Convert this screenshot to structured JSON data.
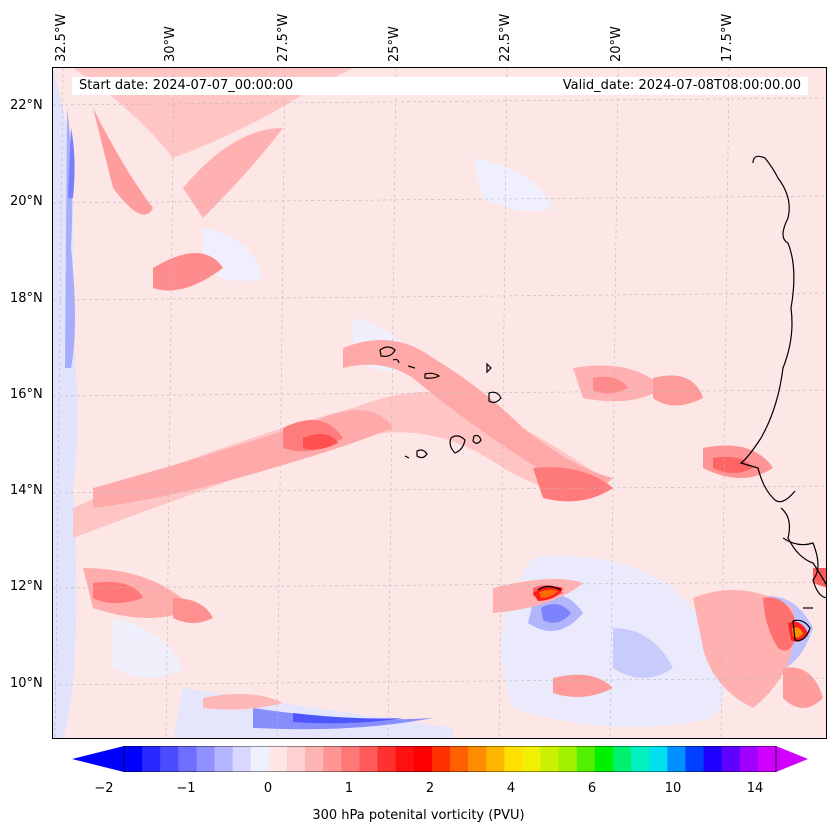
{
  "map": {
    "start_date": "Start date: 2024-07-07_00:00:00",
    "valid_date": "Valid_date: 2024-07-08T08:00:00.00",
    "longitude_labels": [
      "32.5°W",
      "30°W",
      "27.5°W",
      "25°W",
      "22.5°W",
      "20°W",
      "17.5°W"
    ],
    "latitude_labels": [
      "22°N",
      "20°N",
      "18°N",
      "16°N",
      "14°N",
      "12°N",
      "10°N"
    ],
    "field": "300 hPa potential vorticity",
    "projection": "lat-lon, gridlines dashed grey"
  },
  "colorbar": {
    "title": "300 hPa potenital vorticity (PVU)",
    "tick_labels": [
      "−2",
      "−1",
      "0",
      "1",
      "2",
      "4",
      "6",
      "10",
      "14"
    ],
    "colors": [
      "#0000ff",
      "#2828ff",
      "#4a4aff",
      "#6e6eff",
      "#9090ff",
      "#b4b4ff",
      "#d8d8ff",
      "#eef0ff",
      "#ffe6e6",
      "#ffd0d0",
      "#ffb4b4",
      "#ff9696",
      "#ff7878",
      "#ff5a5a",
      "#ff3030",
      "#ff1010",
      "#ff0000",
      "#ff3000",
      "#ff6000",
      "#ff8c00",
      "#ffb400",
      "#ffe000",
      "#f0f000",
      "#c8f000",
      "#a0f000",
      "#50f000",
      "#00f000",
      "#00f070",
      "#00f0c0",
      "#00e0f0",
      "#0090ff",
      "#0040ff",
      "#2000ff",
      "#6000ff",
      "#a000ff",
      "#d000ff"
    ]
  }
}
